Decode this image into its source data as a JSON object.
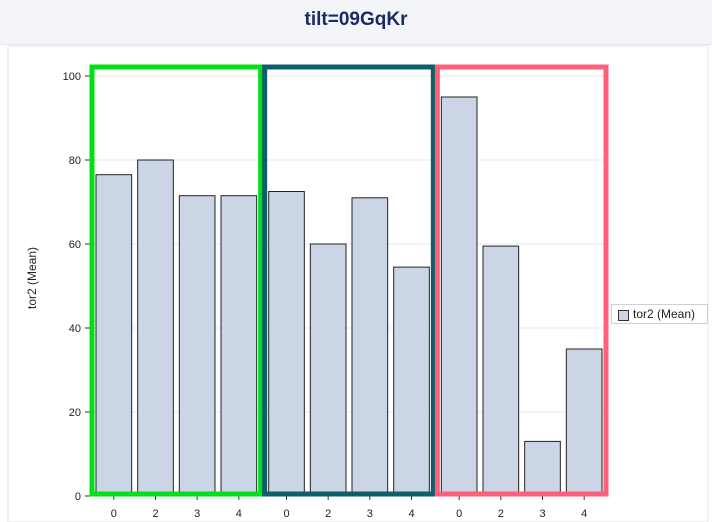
{
  "chart_data": {
    "type": "bar",
    "title": "tilt=09GqKr",
    "ylabel": "tor2 (Mean)",
    "xlabel": "",
    "ylim": [
      0,
      100
    ],
    "yticks": [
      0,
      20,
      40,
      60,
      80,
      100
    ],
    "grid": true,
    "legend": {
      "position": "right",
      "entries": [
        "tor2 (Mean)"
      ]
    },
    "bar_color": "#cbd5e6",
    "groups": [
      {
        "categories": [
          "0",
          "2",
          "3",
          "4"
        ],
        "values": [
          76.5,
          80,
          71.5,
          71.5
        ],
        "highlight_color": "#00e01a"
      },
      {
        "categories": [
          "0",
          "2",
          "3",
          "4"
        ],
        "values": [
          72.5,
          60,
          71,
          54.5
        ],
        "highlight_color": "#0e5f6a"
      },
      {
        "categories": [
          "0",
          "2",
          "3",
          "4"
        ],
        "values": [
          95,
          59.5,
          13,
          35
        ],
        "highlight_color": "#ff5f7a"
      }
    ]
  }
}
